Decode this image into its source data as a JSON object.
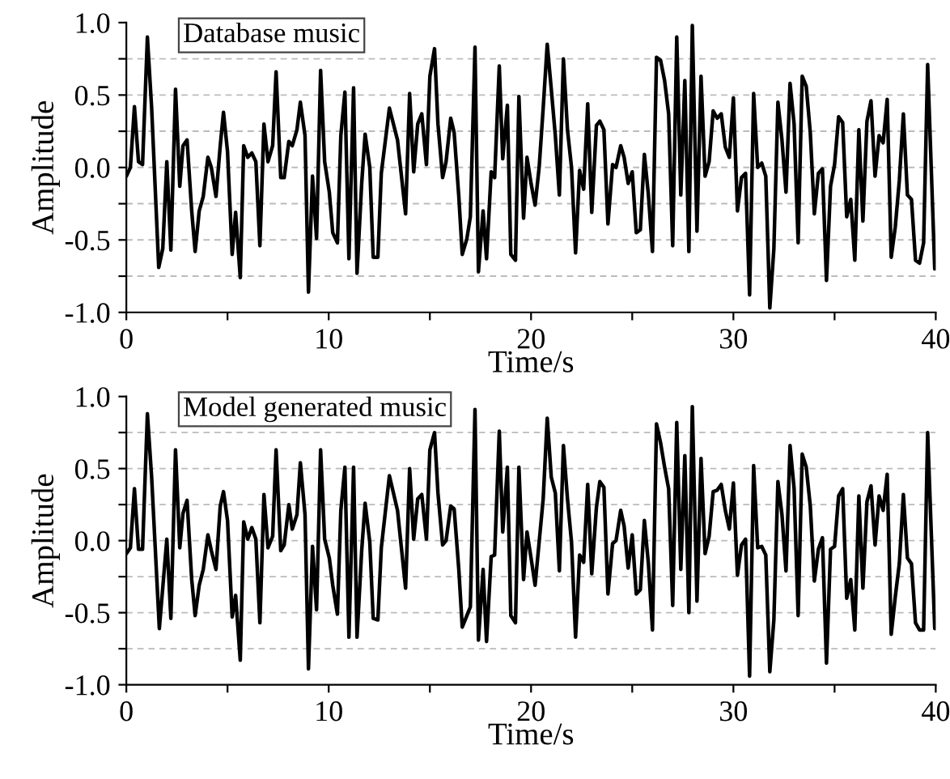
{
  "chart_data": [
    {
      "type": "line",
      "annotations": [
        "Database music"
      ],
      "xlabel": "Time/s",
      "ylabel": "Amplitude",
      "xlim": [
        0,
        40
      ],
      "ylim": [
        -1.0,
        1.0
      ],
      "xticks": [
        0,
        {
          "value": 5,
          "label": null
        },
        10,
        {
          "value": 15,
          "label": null
        },
        20,
        {
          "value": 25,
          "label": null
        },
        30,
        {
          "value": 35,
          "label": null
        },
        40
      ],
      "yticks": [
        {
          "value": -1.0,
          "label": "-1.0"
        },
        {
          "value": -0.75,
          "label": null
        },
        {
          "value": -0.5,
          "label": "-0.5"
        },
        {
          "value": -0.25,
          "label": null
        },
        {
          "value": 0.0,
          "label": "0.0"
        },
        {
          "value": 0.25,
          "label": null
        },
        {
          "value": 0.5,
          "label": "0.5"
        },
        {
          "value": 0.75,
          "label": null
        },
        {
          "value": 1.0,
          "label": "1.0"
        }
      ],
      "grid": "y",
      "line_style": "solid",
      "marker": "none",
      "series": [
        {
          "color": "#000000",
          "x": [
            0,
            0.2,
            0.4,
            0.6,
            0.8,
            1.04,
            1.25,
            1.6,
            1.8,
            2.0,
            2.2,
            2.43,
            2.64,
            2.8,
            3.0,
            3.23,
            3.4,
            3.6,
            3.8,
            4.03,
            4.2,
            4.43,
            4.64,
            4.8,
            5.0,
            5.23,
            5.4,
            5.63,
            5.8,
            6.0,
            6.2,
            6.4,
            6.6,
            6.8,
            7.0,
            7.23,
            7.4,
            7.63,
            7.8,
            8.03,
            8.2,
            8.43,
            8.6,
            8.83,
            9.0,
            9.2,
            9.4,
            9.6,
            9.8,
            10.03,
            10.2,
            10.43,
            10.6,
            10.8,
            11.0,
            11.23,
            11.4,
            11.63,
            11.8,
            12.03,
            12.2,
            12.43,
            12.6,
            13.0,
            13.4,
            13.8,
            14.0,
            14.2,
            14.4,
            14.6,
            14.83,
            15.0,
            15.23,
            15.4,
            15.63,
            15.8,
            16.03,
            16.2,
            16.43,
            16.6,
            16.83,
            17.0,
            17.23,
            17.4,
            17.63,
            17.8,
            18.03,
            18.2,
            18.43,
            18.6,
            18.83,
            19.0,
            19.23,
            19.4,
            19.63,
            19.8,
            20.0,
            20.2,
            20.4,
            20.6,
            20.8,
            21.0,
            21.2,
            21.4,
            21.6,
            21.8,
            22.0,
            22.2,
            22.4,
            22.6,
            22.8,
            23.0,
            23.23,
            23.4,
            23.6,
            23.8,
            24.03,
            24.2,
            24.43,
            24.6,
            24.8,
            25.0,
            25.2,
            25.4,
            25.6,
            25.8,
            26.0,
            26.2,
            26.4,
            26.6,
            26.8,
            27.0,
            27.2,
            27.4,
            27.6,
            27.8,
            27.97,
            28.2,
            28.4,
            28.6,
            28.8,
            29.0,
            29.2,
            29.4,
            29.6,
            29.8,
            30.0,
            30.2,
            30.4,
            30.6,
            30.8,
            31.0,
            31.2,
            31.4,
            31.6,
            31.8,
            32.0,
            32.2,
            32.4,
            32.6,
            32.8,
            33.0,
            33.2,
            33.4,
            33.6,
            33.8,
            34.0,
            34.2,
            34.4,
            34.6,
            34.8,
            35.0,
            35.2,
            35.4,
            35.6,
            35.8,
            36.0,
            36.2,
            36.4,
            36.6,
            36.8,
            37.0,
            37.2,
            37.4,
            37.6,
            37.8,
            38.0,
            38.2,
            38.4,
            38.6,
            38.8,
            39.0,
            39.2,
            39.4,
            39.6,
            39.95
          ],
          "values": [
            -0.06,
            0,
            0.42,
            0.04,
            0.02,
            0.9,
            0.41,
            -0.69,
            -0.56,
            0.04,
            -0.57,
            0.54,
            -0.13,
            0.15,
            0.19,
            -0.3,
            -0.58,
            -0.3,
            -0.2,
            0.07,
            0,
            -0.2,
            0.15,
            0.38,
            0.11,
            -0.6,
            -0.31,
            -0.76,
            0.15,
            0.07,
            0.1,
            0.04,
            -0.54,
            0.3,
            0.04,
            0.15,
            0.66,
            -0.07,
            -0.07,
            0.18,
            0.15,
            0.26,
            0.45,
            0.22,
            -0.86,
            -0.06,
            -0.49,
            0.67,
            0.04,
            -0.17,
            -0.45,
            -0.52,
            0.22,
            0.52,
            -0.63,
            0.55,
            -0.73,
            -0.11,
            0.23,
            0,
            -0.62,
            -0.62,
            -0.04,
            0.41,
            0.19,
            -0.32,
            0.51,
            -0.03,
            0.3,
            0.37,
            0.02,
            0.63,
            0.82,
            0.3,
            -0.07,
            0.04,
            0.34,
            0.24,
            -0.2,
            -0.6,
            -0.49,
            -0.34,
            0.83,
            -0.72,
            -0.3,
            -0.63,
            -0.03,
            -0.07,
            0.7,
            0.06,
            0.43,
            -0.6,
            -0.64,
            0.49,
            -0.35,
            0.07,
            -0.11,
            -0.26,
            0,
            0.41,
            0.85,
            0.54,
            0.22,
            -0.19,
            0.75,
            0.26,
            0,
            -0.59,
            -0.02,
            -0.15,
            0.44,
            -0.31,
            0.29,
            0.32,
            0.26,
            -0.39,
            0.02,
            0,
            0.15,
            0.07,
            -0.11,
            -0.03,
            -0.45,
            -0.43,
            0.09,
            -0.19,
            -0.58,
            0.76,
            0.74,
            0.6,
            0.37,
            -0.54,
            0.9,
            -0.19,
            0.6,
            -0.58,
            0.98,
            -0.44,
            0.63,
            -0.06,
            0.04,
            0.39,
            0.34,
            0.37,
            0.14,
            0.07,
            0.48,
            -0.3,
            -0.07,
            -0.04,
            -0.88,
            0.51,
            0,
            0.03,
            -0.06,
            -0.97,
            -0.56,
            0.45,
            0.19,
            -0.17,
            0.58,
            0.3,
            -0.52,
            0.63,
            0.56,
            0.24,
            -0.32,
            -0.04,
            -0.01,
            -0.78,
            -0.13,
            0.02,
            0.35,
            0.31,
            -0.34,
            -0.22,
            -0.64,
            0.26,
            -0.37,
            0.32,
            0.46,
            -0.06,
            0.22,
            0.17,
            0.47,
            -0.62,
            -0.41,
            -0.09,
            0.37,
            -0.19,
            -0.22,
            -0.64,
            -0.66,
            -0.52,
            0.71,
            -0.7
          ]
        }
      ]
    },
    {
      "type": "line",
      "annotations": [
        "Model generated music"
      ],
      "xlabel": "Time/s",
      "ylabel": "Amplitude",
      "xlim": [
        0,
        40
      ],
      "ylim": [
        -1.0,
        1.0
      ],
      "xticks": [
        0,
        {
          "value": 5,
          "label": null
        },
        10,
        {
          "value": 15,
          "label": null
        },
        20,
        {
          "value": 25,
          "label": null
        },
        30,
        {
          "value": 35,
          "label": null
        },
        40
      ],
      "yticks": [
        {
          "value": -1.0,
          "label": "-1.0"
        },
        {
          "value": -0.75,
          "label": null
        },
        {
          "value": -0.5,
          "label": "-0.5"
        },
        {
          "value": -0.25,
          "label": null
        },
        {
          "value": 0.0,
          "label": "0.0"
        },
        {
          "value": 0.25,
          "label": null
        },
        {
          "value": 0.5,
          "label": "0.5"
        },
        {
          "value": 0.75,
          "label": null
        },
        {
          "value": 1.0,
          "label": "1.0"
        }
      ],
      "grid": "y",
      "line_style": "solid",
      "marker": "none",
      "series": [
        {
          "color": "#000000",
          "x": [
            0,
            0.2,
            0.4,
            0.6,
            0.8,
            1.04,
            1.25,
            1.63,
            2.0,
            2.2,
            2.43,
            2.64,
            2.8,
            3.0,
            3.23,
            3.4,
            3.6,
            3.8,
            4.03,
            4.2,
            4.43,
            4.64,
            4.8,
            5.0,
            5.23,
            5.4,
            5.63,
            5.8,
            6.0,
            6.2,
            6.4,
            6.6,
            6.8,
            7.0,
            7.23,
            7.4,
            7.63,
            7.8,
            8.03,
            8.2,
            8.43,
            8.6,
            8.83,
            9.0,
            9.2,
            9.4,
            9.6,
            9.8,
            10.03,
            10.2,
            10.43,
            10.6,
            10.8,
            11.0,
            11.23,
            11.4,
            11.63,
            11.8,
            12.03,
            12.2,
            12.43,
            12.6,
            13.0,
            13.4,
            13.8,
            14.0,
            14.2,
            14.4,
            14.6,
            14.83,
            15.0,
            15.23,
            15.4,
            15.63,
            15.8,
            16.03,
            16.2,
            16.43,
            16.6,
            16.83,
            17.0,
            17.23,
            17.4,
            17.63,
            17.8,
            18.03,
            18.2,
            18.43,
            18.6,
            18.83,
            19.0,
            19.23,
            19.4,
            19.63,
            19.8,
            20.0,
            20.2,
            20.4,
            20.6,
            20.8,
            21.0,
            21.2,
            21.4,
            21.6,
            21.8,
            22.0,
            22.2,
            22.4,
            22.6,
            22.8,
            23.0,
            23.23,
            23.4,
            23.6,
            23.8,
            24.03,
            24.2,
            24.43,
            24.6,
            24.8,
            25.0,
            25.2,
            25.4,
            25.6,
            25.8,
            26.0,
            26.2,
            26.4,
            26.6,
            26.8,
            27.0,
            27.2,
            27.4,
            27.6,
            27.8,
            27.97,
            28.2,
            28.4,
            28.6,
            28.8,
            29.0,
            29.2,
            29.4,
            29.6,
            29.8,
            30.0,
            30.2,
            30.4,
            30.6,
            30.8,
            31.0,
            31.2,
            31.4,
            31.6,
            31.8,
            32.0,
            32.2,
            32.4,
            32.6,
            32.8,
            33.0,
            33.2,
            33.4,
            33.6,
            33.8,
            34.0,
            34.2,
            34.4,
            34.6,
            34.8,
            35.0,
            35.2,
            35.4,
            35.6,
            35.8,
            36.0,
            36.2,
            36.4,
            36.6,
            36.8,
            37.0,
            37.2,
            37.4,
            37.6,
            37.8,
            38.0,
            38.2,
            38.4,
            38.6,
            38.8,
            39.0,
            39.2,
            39.4,
            39.6,
            39.95
          ],
          "values": [
            -0.09,
            -0.05,
            0.36,
            -0.06,
            -0.06,
            0.88,
            0.44,
            -0.61,
            0.01,
            -0.54,
            0.63,
            -0.05,
            0.19,
            0.28,
            -0.27,
            -0.52,
            -0.31,
            -0.2,
            0.04,
            -0.07,
            -0.2,
            0.24,
            0.34,
            0.14,
            -0.53,
            -0.38,
            -0.83,
            0.13,
            0.01,
            0.09,
            0.01,
            -0.57,
            0.32,
            -0.05,
            0.03,
            0.63,
            -0.07,
            -0.03,
            0.25,
            0.08,
            0.18,
            0.54,
            0.18,
            -0.89,
            -0.04,
            -0.48,
            0.63,
            0.01,
            -0.12,
            -0.31,
            -0.51,
            0.21,
            0.51,
            -0.67,
            0.51,
            -0.67,
            -0.07,
            0.26,
            -0.01,
            -0.54,
            -0.55,
            -0.05,
            0.45,
            0.21,
            -0.33,
            0.5,
            0.01,
            0.29,
            0.32,
            0.01,
            0.63,
            0.75,
            0.33,
            -0.03,
            0,
            0.24,
            0.22,
            -0.2,
            -0.6,
            -0.52,
            -0.46,
            0.91,
            -0.69,
            -0.2,
            -0.7,
            -0.11,
            -0.1,
            0.76,
            0.06,
            0.51,
            -0.52,
            -0.57,
            0.51,
            -0.27,
            0.06,
            -0.12,
            -0.31,
            -0.01,
            0.29,
            0.85,
            0.44,
            0.33,
            -0.21,
            0.66,
            0.29,
            -0.01,
            -0.67,
            -0.1,
            -0.15,
            0.39,
            -0.23,
            0.23,
            0.41,
            0.37,
            -0.37,
            -0.02,
            0,
            0.21,
            0.1,
            -0.19,
            0.04,
            -0.37,
            -0.34,
            0.14,
            -0.16,
            -0.62,
            0.81,
            0.68,
            0.51,
            0.36,
            -0.45,
            0.82,
            -0.2,
            0.59,
            -0.5,
            0.93,
            -0.42,
            0.57,
            -0.09,
            0.03,
            0.34,
            0.35,
            0.39,
            0.21,
            0.08,
            0.4,
            -0.24,
            -0.03,
            0.01,
            -0.94,
            0.52,
            -0.05,
            -0.04,
            -0.1,
            -0.91,
            -0.55,
            0.41,
            0.18,
            -0.21,
            0.66,
            0.36,
            -0.52,
            0.6,
            0.51,
            0.24,
            -0.28,
            -0.06,
            0.02,
            -0.85,
            -0.06,
            -0.04,
            0.31,
            0.36,
            -0.4,
            -0.27,
            -0.62,
            0.31,
            -0.33,
            0.27,
            0.38,
            -0.03,
            0.31,
            0.21,
            0.46,
            -0.65,
            -0.39,
            -0.16,
            0.32,
            -0.12,
            -0.16,
            -0.57,
            -0.62,
            -0.62,
            0.75,
            -0.61
          ]
        }
      ]
    }
  ]
}
